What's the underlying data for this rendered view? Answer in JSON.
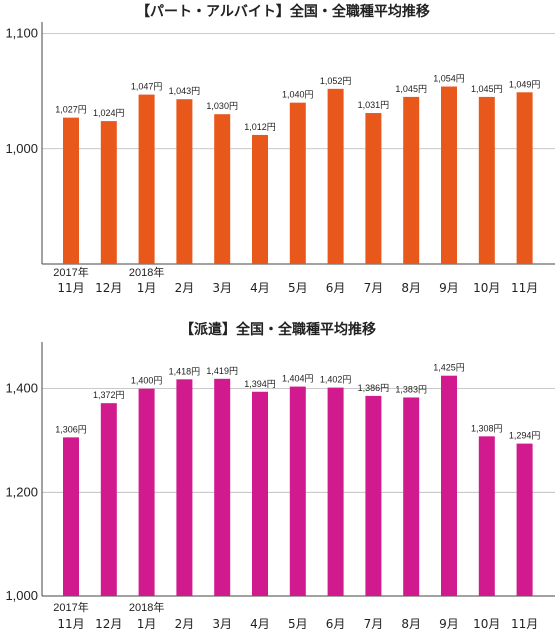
{
  "chart_data": [
    {
      "type": "bar",
      "title": "【パート・アルバイト】全国・全職種平均推移",
      "categories": [
        "11月",
        "12月",
        "1月",
        "2月",
        "3月",
        "4月",
        "5月",
        "6月",
        "7月",
        "8月",
        "9月",
        "10月",
        "11月"
      ],
      "year_markers": [
        {
          "index": 0,
          "label": "2017年"
        },
        {
          "index": 2,
          "label": "2018年"
        }
      ],
      "values": [
        1027,
        1024,
        1047,
        1043,
        1030,
        1012,
        1040,
        1052,
        1031,
        1045,
        1054,
        1045,
        1049
      ],
      "data_labels": [
        "1,027円",
        "1,024円",
        "1,047円",
        "1,043円",
        "1,030円",
        "1,012円",
        "1,040円",
        "1,052円",
        "1,031円",
        "1,045円",
        "1,054円",
        "1,045円",
        "1,049円"
      ],
      "yticks": [
        "1,000",
        "1,100"
      ],
      "ytick_values": [
        1000,
        1100
      ],
      "ylim": [
        900,
        1110
      ],
      "color": "#e8581b",
      "grid": "horizontal"
    },
    {
      "type": "bar",
      "title": "【派遣】全国・全職種平均推移",
      "categories": [
        "11月",
        "12月",
        "1月",
        "2月",
        "3月",
        "4月",
        "5月",
        "6月",
        "7月",
        "8月",
        "9月",
        "10月",
        "11月"
      ],
      "year_markers": [
        {
          "index": 0,
          "label": "2017年"
        },
        {
          "index": 2,
          "label": "2018年"
        }
      ],
      "values": [
        1306,
        1372,
        1400,
        1418,
        1419,
        1394,
        1404,
        1402,
        1386,
        1383,
        1425,
        1308,
        1294
      ],
      "data_labels": [
        "1,306円",
        "1,372円",
        "1,400円",
        "1,418円",
        "1,419円",
        "1,394円",
        "1,404円",
        "1,402円",
        "1,386円",
        "1,383円",
        "1,425円",
        "1,308円",
        "1,294円"
      ],
      "yticks": [
        "1,000",
        "1,200",
        "1,400"
      ],
      "ytick_values": [
        1000,
        1200,
        1400
      ],
      "ylim": [
        1000,
        1490
      ],
      "color": "#d01a8e",
      "grid": "horizontal"
    }
  ]
}
